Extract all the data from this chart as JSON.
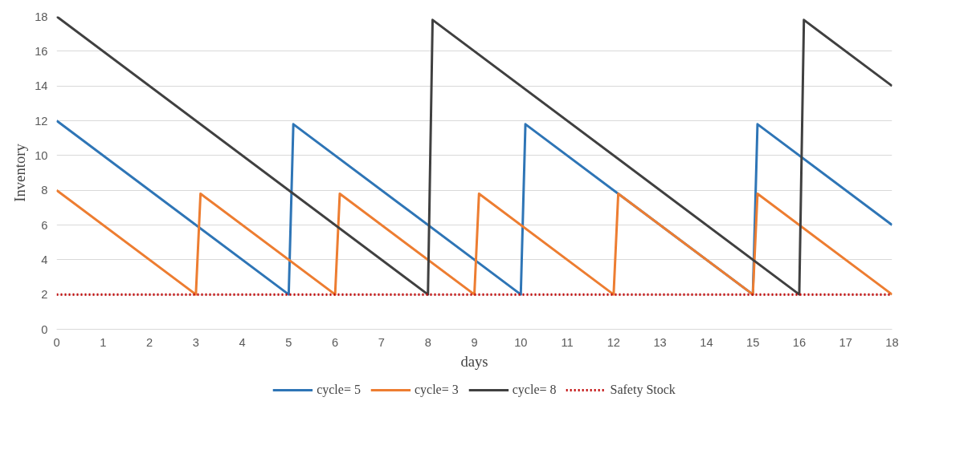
{
  "chart_data": {
    "type": "line",
    "xlabel": "days",
    "ylabel": "Inventory",
    "xlim": [
      0,
      18
    ],
    "ylim": [
      0,
      18
    ],
    "xticks": [
      0,
      1,
      2,
      3,
      4,
      5,
      6,
      7,
      8,
      9,
      10,
      11,
      12,
      13,
      14,
      15,
      16,
      17,
      18
    ],
    "yticks": [
      0,
      2,
      4,
      6,
      8,
      10,
      12,
      14,
      16,
      18
    ],
    "grid": "y",
    "legend": "bottom",
    "line_style": "solid",
    "series": [
      {
        "name": "cycle= 5",
        "color": "#2e75b6",
        "x": [
          0,
          5,
          5.1,
          10,
          10.1,
          15,
          15.1,
          18
        ],
        "values": [
          12,
          2,
          11.8,
          2,
          11.8,
          2,
          11.8,
          6
        ]
      },
      {
        "name": "cycle= 3",
        "color": "#ed7d31",
        "x": [
          0,
          3,
          3.1,
          6,
          6.1,
          9,
          9.1,
          12,
          12.1,
          15,
          15.1,
          18
        ],
        "values": [
          8,
          2,
          7.8,
          2,
          7.8,
          2,
          7.8,
          2,
          7.8,
          2,
          7.8,
          2
        ]
      },
      {
        "name": "cycle= 8",
        "color": "#404040",
        "x": [
          0,
          8,
          8.1,
          16,
          16.1,
          18
        ],
        "values": [
          18,
          2,
          17.8,
          2,
          17.8,
          14
        ]
      },
      {
        "name": "Safety Stock",
        "color": "#c00000",
        "line_style": "dotted",
        "x": [
          0,
          18
        ],
        "values": [
          2,
          2
        ]
      }
    ]
  }
}
